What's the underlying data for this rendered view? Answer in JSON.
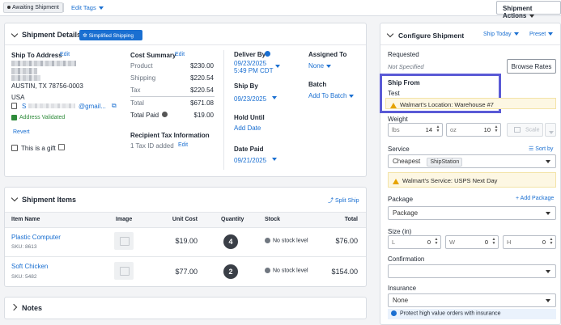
{
  "topbar": {
    "badge": "Awaiting Shipment",
    "edit_tags": "Edit Tags",
    "shipment_actions": "Shipment Actions"
  },
  "details": {
    "title": "Shipment Details",
    "simplified_button": "Simplified Shipping",
    "ship_to_label": "Ship To Address",
    "edit": "Edit",
    "city": "AUSTIN, TX 78756-0003",
    "country": "USA",
    "name_initial": "S",
    "email_suffix": "@gmail...",
    "validated": "Address Validated",
    "revert": "Revert",
    "gift": "This is a gift",
    "cost_summary": "Cost Summary",
    "cost_edit": "Edit",
    "costs": [
      {
        "label": "Product",
        "value": "$230.00"
      },
      {
        "label": "Shipping",
        "value": "$220.54"
      },
      {
        "label": "Tax",
        "value": "$220.54"
      },
      {
        "label": "Total",
        "value": "$671.08"
      },
      {
        "label": "Total Paid",
        "value": "$19.00"
      }
    ],
    "tax_title": "Recipient Tax Information",
    "tax_added": "1 Tax ID added",
    "tax_edit": "Edit",
    "deliver_by_label": "Deliver By",
    "deliver_by_date": "09/23/2025",
    "deliver_by_time": "5:49 PM CDT",
    "ship_by_label": "Ship By",
    "ship_by_date": "09/23/2025",
    "hold_until_label": "Hold Until",
    "hold_until_value": "Add Date",
    "date_paid_label": "Date Paid",
    "date_paid_value": "09/21/2025",
    "assigned_label": "Assigned To",
    "assigned_value": "None",
    "batch_label": "Batch",
    "batch_value": "Add To Batch"
  },
  "items": {
    "title": "Shipment Items",
    "split": "Split Ship",
    "headers": [
      "Item Name",
      "Image",
      "Unit Cost",
      "Quantity",
      "Stock",
      "Total"
    ],
    "rows": [
      {
        "name": "Plastic Computer",
        "sku": "SKU: 8613",
        "unit": "$19.00",
        "qty": "4",
        "stock": "No stock level",
        "total": "$76.00"
      },
      {
        "name": "Soft Chicken",
        "sku": "SKU: 5482",
        "unit": "$77.00",
        "qty": "2",
        "stock": "No stock level",
        "total": "$154.00"
      }
    ]
  },
  "notes": {
    "title": "Notes"
  },
  "configure": {
    "title": "Configure Shipment",
    "ship_today": "Ship Today",
    "preset": "Preset",
    "requested_label": "Requested",
    "requested_value": "Not Specified",
    "browse_rates": "Browse Rates",
    "ship_from_label": "Ship From",
    "ship_from_value": "Test",
    "ship_from_warning": "Walmart's Location: Warehouse #7",
    "weight_label": "Weight",
    "lbs_label": "lbs",
    "lbs_value": "14",
    "oz_label": "oz",
    "oz_value": "10",
    "scale": "Scale",
    "service_label": "Service",
    "sort_by": "Sort by",
    "service_value": "Cheapest",
    "service_tag": "ShipStation",
    "service_warning": "Walmart's Service: USPS Next Day",
    "package_label": "Package",
    "add_package": "Add Package",
    "package_value": "Package",
    "size_label": "Size (in)",
    "size_l_label": "L",
    "size_l": "0",
    "size_w_label": "W",
    "size_w": "0",
    "size_h_label": "H",
    "size_h": "0",
    "confirmation_label": "Confirmation",
    "insurance_label": "Insurance",
    "insurance_value": "None",
    "insurance_note": "Protect high value orders with insurance"
  },
  "colors": {
    "accent": "#1a6fd1",
    "highlight": "#5a5ad6",
    "warning_bg": "#fdf7e3",
    "validated": "#2e8b3a"
  }
}
